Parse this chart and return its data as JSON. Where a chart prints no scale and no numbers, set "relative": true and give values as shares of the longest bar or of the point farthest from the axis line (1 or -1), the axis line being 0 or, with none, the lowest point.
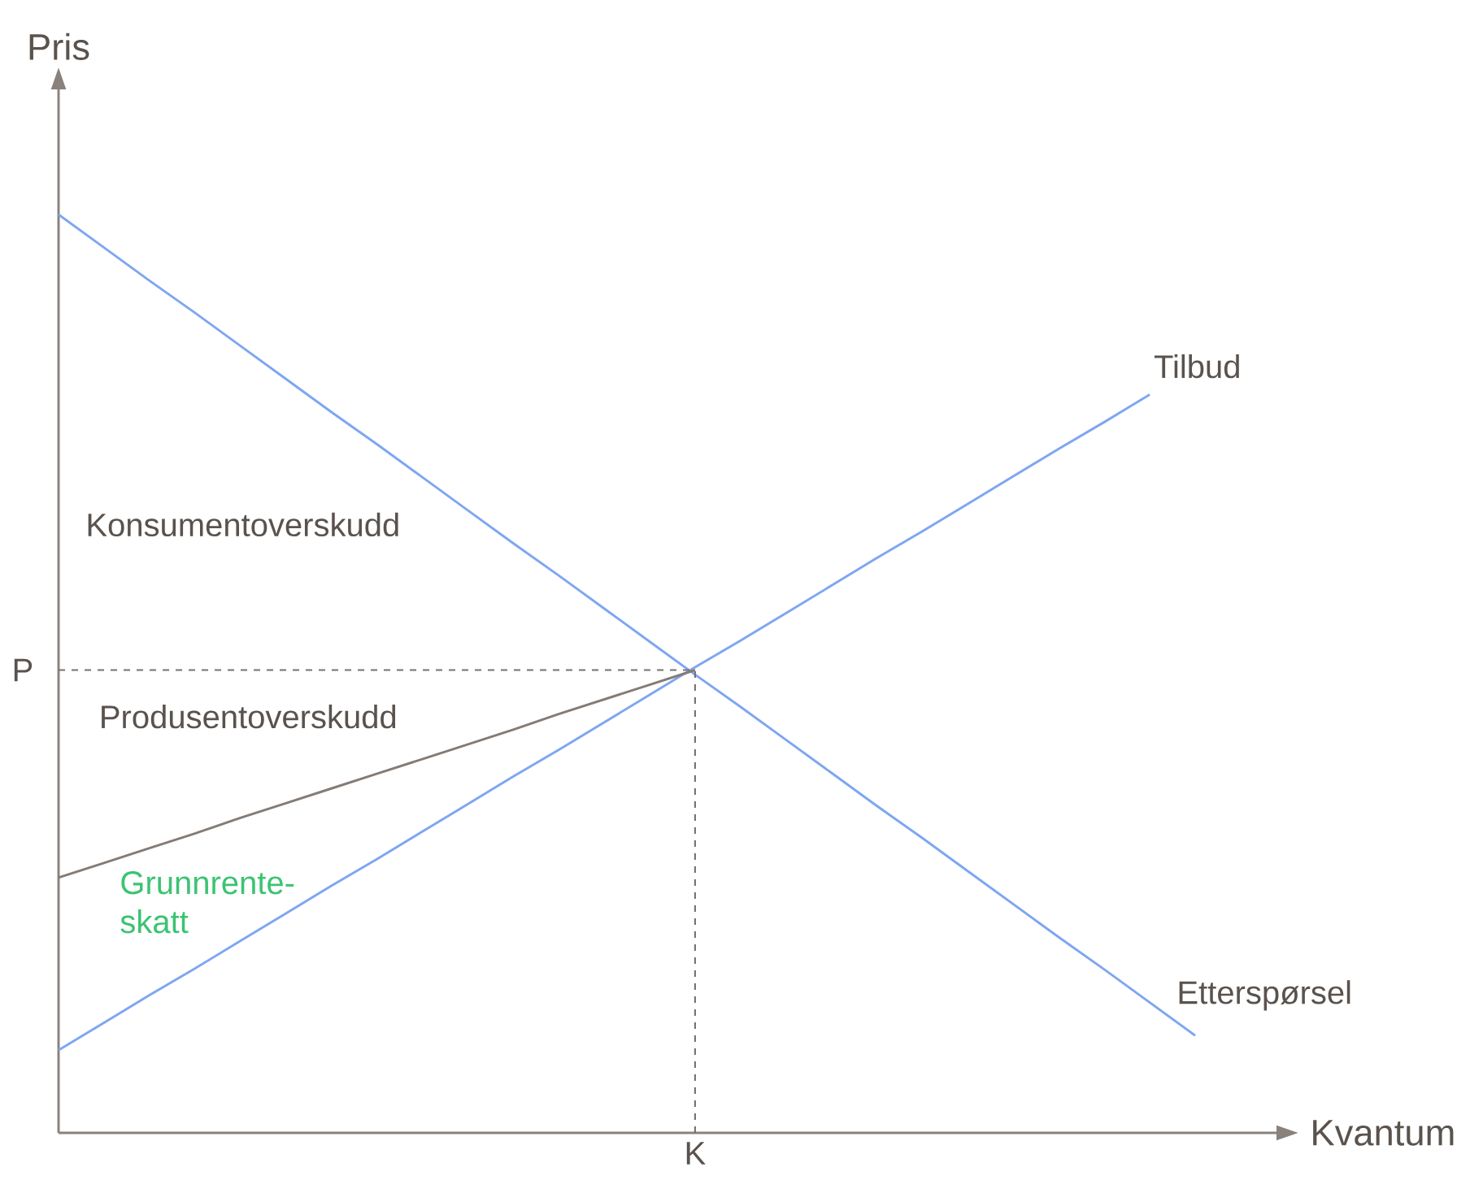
{
  "chart_data": {
    "type": "line",
    "relative": true,
    "xlabel": "Kvantum",
    "ylabel": "Pris",
    "categories": [
      null,
      null,
      null,
      null,
      null,
      null,
      null,
      null,
      null,
      null,
      null,
      null,
      null,
      null,
      null,
      null,
      null,
      null,
      null,
      null,
      null,
      null,
      null,
      null,
      null,
      null
    ],
    "series": [
      {
        "name": "Etterspørsel",
        "color": "#7ea6f2",
        "values": [
          1.0,
          0.964,
          0.928,
          0.893,
          0.857,
          0.821,
          0.785,
          0.75,
          0.714,
          0.678,
          0.642,
          0.607,
          0.571,
          0.535,
          0.499,
          0.464,
          0.428,
          0.392,
          0.356,
          0.321,
          0.285,
          0.249,
          0.213,
          0.178,
          0.142,
          0.106
        ]
      },
      {
        "name": "Tilbud",
        "color": "#7ea6f2",
        "values": [
          0.09,
          0.12,
          0.15,
          0.179,
          0.209,
          0.239,
          0.269,
          0.298,
          0.328,
          0.358,
          0.388,
          0.417,
          0.447,
          0.477,
          0.507,
          0.536,
          0.566,
          0.596,
          0.626,
          0.655,
          0.685,
          0.715,
          0.745,
          0.774,
          0.804,
          null
        ]
      },
      {
        "color": "#857b74",
        "values": [
          0.278,
          0.294,
          0.31,
          0.326,
          0.343,
          0.359,
          0.375,
          0.391,
          0.407,
          0.423,
          0.439,
          0.456,
          0.472,
          0.488,
          0.504,
          null,
          null,
          null,
          null,
          null,
          null,
          null,
          null,
          null,
          null,
          null
        ]
      }
    ],
    "ref_lines": [
      {
        "axis": "y",
        "value": 0.504,
        "label": "P",
        "line_style": "dashed",
        "color": "#7a716c"
      }
    ],
    "annotations": [
      "Konsumentoverskudd",
      "Produsentoverskudd",
      "Grunnrente-skatt",
      "K"
    ]
  }
}
